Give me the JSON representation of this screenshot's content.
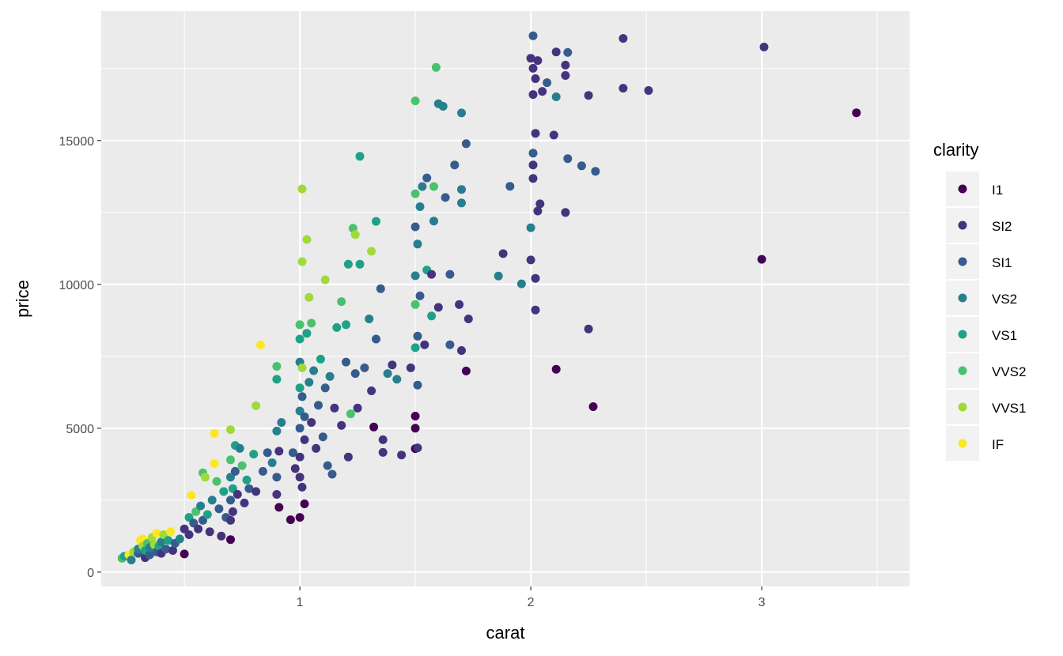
{
  "chart_data": {
    "type": "scatter",
    "title": "",
    "xlabel": "carat",
    "ylabel": "price",
    "xlim": [
      0.14,
      3.64
    ],
    "ylim": [
      -500,
      19500
    ],
    "x_ticks": [
      1,
      2,
      3
    ],
    "x_minor": [
      0.5,
      1.5,
      2.5,
      3.5
    ],
    "y_ticks": [
      0,
      5000,
      10000,
      15000
    ],
    "y_minor": [
      2500,
      7500,
      12500,
      17500
    ],
    "grid": true,
    "panel_background": "#EBEBEB",
    "legend": {
      "title": "clarity",
      "placement": "right",
      "entries": [
        "I1",
        "SI2",
        "SI1",
        "VS2",
        "VS1",
        "VVS2",
        "VVS1",
        "IF"
      ]
    },
    "colors": {
      "I1": "#440154",
      "SI2": "#46337E",
      "SI1": "#365C8D",
      "VS2": "#277F8E",
      "VS1": "#1FA187",
      "VVS2": "#4AC16D",
      "VVS1": "#9FDA3A",
      "IF": "#FDE725"
    },
    "columns": [
      "carat",
      "price",
      "clarity"
    ],
    "points": [
      [
        0.23,
        480,
        "VVS2"
      ],
      [
        0.24,
        550,
        "VS1"
      ],
      [
        0.26,
        600,
        "IF"
      ],
      [
        0.27,
        420,
        "VS2"
      ],
      [
        0.28,
        700,
        "VVS1"
      ],
      [
        0.3,
        650,
        "SI1"
      ],
      [
        0.3,
        800,
        "VS2"
      ],
      [
        0.31,
        1100,
        "IF"
      ],
      [
        0.32,
        1150,
        "IF"
      ],
      [
        0.32,
        900,
        "VVS1"
      ],
      [
        0.33,
        500,
        "SI2"
      ],
      [
        0.33,
        750,
        "VS1"
      ],
      [
        0.34,
        1000,
        "VVS2"
      ],
      [
        0.35,
        600,
        "SI1"
      ],
      [
        0.35,
        850,
        "VS2"
      ],
      [
        0.36,
        1200,
        "VVS1"
      ],
      [
        0.37,
        950,
        "VVS1"
      ],
      [
        0.38,
        700,
        "SI1"
      ],
      [
        0.38,
        1350,
        "IF"
      ],
      [
        0.39,
        900,
        "VS1"
      ],
      [
        0.4,
        1050,
        "VS2"
      ],
      [
        0.4,
        650,
        "SI2"
      ],
      [
        0.41,
        1300,
        "VVS1"
      ],
      [
        0.42,
        800,
        "SI1"
      ],
      [
        0.43,
        1100,
        "VS1"
      ],
      [
        0.44,
        1400,
        "IF"
      ],
      [
        0.45,
        750,
        "SI2"
      ],
      [
        0.46,
        1000,
        "SI1"
      ],
      [
        0.48,
        1150,
        "VS2"
      ],
      [
        0.5,
        630,
        "I1"
      ],
      [
        0.5,
        1500,
        "SI2"
      ],
      [
        0.52,
        1900,
        "VS1"
      ],
      [
        0.52,
        1300,
        "SI2"
      ],
      [
        0.53,
        2670,
        "IF"
      ],
      [
        0.54,
        1700,
        "SI1"
      ],
      [
        0.55,
        2100,
        "VVS2"
      ],
      [
        0.56,
        1500,
        "SI2"
      ],
      [
        0.57,
        2300,
        "VS2"
      ],
      [
        0.58,
        1800,
        "SI1"
      ],
      [
        0.58,
        3450,
        "VVS2"
      ],
      [
        0.59,
        3300,
        "VVS1"
      ],
      [
        0.6,
        2000,
        "VS1"
      ],
      [
        0.61,
        1400,
        "SI2"
      ],
      [
        0.62,
        2500,
        "VS2"
      ],
      [
        0.63,
        3770,
        "IF"
      ],
      [
        0.63,
        4820,
        "IF"
      ],
      [
        0.64,
        3150,
        "VVS2"
      ],
      [
        0.65,
        2200,
        "SI1"
      ],
      [
        0.66,
        1250,
        "SI2"
      ],
      [
        0.67,
        2800,
        "VS1"
      ],
      [
        0.68,
        1900,
        "SI1"
      ],
      [
        0.7,
        1130,
        "I1"
      ],
      [
        0.7,
        4950,
        "VVS1"
      ],
      [
        0.7,
        3900,
        "VVS2"
      ],
      [
        0.7,
        2500,
        "SI1"
      ],
      [
        0.7,
        3300,
        "VS2"
      ],
      [
        0.7,
        1800,
        "SI2"
      ],
      [
        0.71,
        2900,
        "VS1"
      ],
      [
        0.71,
        2100,
        "SI2"
      ],
      [
        0.72,
        4400,
        "VS1"
      ],
      [
        0.72,
        3500,
        "SI1"
      ],
      [
        0.73,
        2700,
        "SI2"
      ],
      [
        0.74,
        4300,
        "VS2"
      ],
      [
        0.75,
        3700,
        "VVS2"
      ],
      [
        0.76,
        2400,
        "SI2"
      ],
      [
        0.77,
        3200,
        "VS1"
      ],
      [
        0.78,
        2900,
        "SI1"
      ],
      [
        0.8,
        4100,
        "VS1"
      ],
      [
        0.81,
        5780,
        "VVS1"
      ],
      [
        0.81,
        2800,
        "SI2"
      ],
      [
        0.83,
        7900,
        "IF"
      ],
      [
        0.84,
        3500,
        "SI1"
      ],
      [
        0.86,
        4150,
        "SI1"
      ],
      [
        0.88,
        3800,
        "VS2"
      ],
      [
        0.9,
        4900,
        "VS2"
      ],
      [
        0.9,
        7150,
        "VVS2"
      ],
      [
        0.9,
        6700,
        "VS1"
      ],
      [
        0.9,
        3300,
        "SI1"
      ],
      [
        0.9,
        2700,
        "SI2"
      ],
      [
        0.91,
        2250,
        "I1"
      ],
      [
        0.91,
        4200,
        "SI2"
      ],
      [
        0.92,
        5200,
        "VS2"
      ],
      [
        0.96,
        1820,
        "I1"
      ],
      [
        0.97,
        4150,
        "SI1"
      ],
      [
        0.98,
        3600,
        "SI2"
      ],
      [
        1.0,
        1900,
        "I1"
      ],
      [
        1.0,
        4000,
        "SI2"
      ],
      [
        1.0,
        5000,
        "SI1"
      ],
      [
        1.0,
        5600,
        "VS2"
      ],
      [
        1.0,
        6400,
        "VS1"
      ],
      [
        1.0,
        7300,
        "VS2"
      ],
      [
        1.0,
        8100,
        "VS1"
      ],
      [
        1.0,
        8600,
        "VVS2"
      ],
      [
        1.0,
        3300,
        "SI2"
      ],
      [
        1.01,
        2950,
        "SI2"
      ],
      [
        1.01,
        6100,
        "SI1"
      ],
      [
        1.01,
        7100,
        "VVS1"
      ],
      [
        1.01,
        10790,
        "VVS1"
      ],
      [
        1.01,
        13320,
        "VVS1"
      ],
      [
        1.02,
        2370,
        "I1"
      ],
      [
        1.02,
        4600,
        "SI2"
      ],
      [
        1.02,
        5400,
        "SI1"
      ],
      [
        1.03,
        11560,
        "VVS1"
      ],
      [
        1.03,
        8300,
        "VS1"
      ],
      [
        1.04,
        9550,
        "VVS1"
      ],
      [
        1.04,
        6600,
        "VS2"
      ],
      [
        1.05,
        8650,
        "VVS2"
      ],
      [
        1.05,
        5200,
        "SI2"
      ],
      [
        1.06,
        7000,
        "VS2"
      ],
      [
        1.07,
        4300,
        "SI2"
      ],
      [
        1.08,
        5800,
        "SI1"
      ],
      [
        1.09,
        7400,
        "VS1"
      ],
      [
        1.1,
        4700,
        "SI1"
      ],
      [
        1.11,
        10160,
        "VVS1"
      ],
      [
        1.11,
        6400,
        "SI1"
      ],
      [
        1.12,
        3700,
        "SI1"
      ],
      [
        1.13,
        6800,
        "VS2"
      ],
      [
        1.14,
        3400,
        "SI1"
      ],
      [
        1.15,
        5700,
        "SI2"
      ],
      [
        1.16,
        8500,
        "VS1"
      ],
      [
        1.18,
        9400,
        "VVS2"
      ],
      [
        1.18,
        5100,
        "SI2"
      ],
      [
        1.2,
        7300,
        "SI1"
      ],
      [
        1.2,
        8600,
        "VS1"
      ],
      [
        1.21,
        10700,
        "VS1"
      ],
      [
        1.21,
        4000,
        "SI2"
      ],
      [
        1.22,
        5500,
        "VVS2"
      ],
      [
        1.23,
        11950,
        "VVS2"
      ],
      [
        1.24,
        11730,
        "VVS1"
      ],
      [
        1.24,
        6900,
        "SI1"
      ],
      [
        1.25,
        5700,
        "SI2"
      ],
      [
        1.26,
        14450,
        "VS1"
      ],
      [
        1.26,
        10700,
        "VS1"
      ],
      [
        1.28,
        7100,
        "SI1"
      ],
      [
        1.3,
        8800,
        "VS2"
      ],
      [
        1.31,
        11150,
        "VVS1"
      ],
      [
        1.31,
        6300,
        "SI2"
      ],
      [
        1.32,
        5040,
        "I1"
      ],
      [
        1.33,
        12190,
        "VS1"
      ],
      [
        1.33,
        8100,
        "SI1"
      ],
      [
        1.35,
        9850,
        "SI1"
      ],
      [
        1.36,
        4600,
        "SI2"
      ],
      [
        1.36,
        4160,
        "SI2"
      ],
      [
        1.38,
        6900,
        "VS2"
      ],
      [
        1.4,
        7200,
        "SI2"
      ],
      [
        1.42,
        6700,
        "VS2"
      ],
      [
        1.44,
        4070,
        "SI2"
      ],
      [
        1.48,
        7100,
        "SI2"
      ],
      [
        1.5,
        4290,
        "I1"
      ],
      [
        1.5,
        5000,
        "I1"
      ],
      [
        1.5,
        5420,
        "I1"
      ],
      [
        1.5,
        7800,
        "VS1"
      ],
      [
        1.5,
        9300,
        "VVS2"
      ],
      [
        1.5,
        10300,
        "VS2"
      ],
      [
        1.5,
        12000,
        "SI1"
      ],
      [
        1.5,
        13150,
        "VVS2"
      ],
      [
        1.5,
        16380,
        "VVS2"
      ],
      [
        1.51,
        4320,
        "SI2"
      ],
      [
        1.51,
        6500,
        "SI1"
      ],
      [
        1.51,
        8200,
        "SI1"
      ],
      [
        1.51,
        11400,
        "VS2"
      ],
      [
        1.52,
        9600,
        "SI1"
      ],
      [
        1.52,
        12700,
        "VS2"
      ],
      [
        1.53,
        13400,
        "VS2"
      ],
      [
        1.54,
        7900,
        "SI2"
      ],
      [
        1.55,
        13700,
        "SI1"
      ],
      [
        1.55,
        10500,
        "VS1"
      ],
      [
        1.57,
        8900,
        "VS1"
      ],
      [
        1.57,
        10350,
        "SI2"
      ],
      [
        1.58,
        13400,
        "VVS2"
      ],
      [
        1.58,
        12200,
        "VS2"
      ],
      [
        1.59,
        17540,
        "VVS2"
      ],
      [
        1.6,
        16280,
        "VS2"
      ],
      [
        1.6,
        9200,
        "SI2"
      ],
      [
        1.62,
        16190,
        "VS2"
      ],
      [
        1.63,
        13020,
        "SI1"
      ],
      [
        1.65,
        10350,
        "SI1"
      ],
      [
        1.65,
        7900,
        "SI1"
      ],
      [
        1.67,
        14150,
        "SI1"
      ],
      [
        1.69,
        9300,
        "SI2"
      ],
      [
        1.7,
        7700,
        "SI2"
      ],
      [
        1.7,
        12830,
        "VS2"
      ],
      [
        1.7,
        13300,
        "VS2"
      ],
      [
        1.7,
        15960,
        "VS2"
      ],
      [
        1.72,
        14890,
        "SI1"
      ],
      [
        1.72,
        6990,
        "I1"
      ],
      [
        1.73,
        8800,
        "SI2"
      ],
      [
        1.86,
        10290,
        "VS2"
      ],
      [
        1.88,
        11070,
        "SI2"
      ],
      [
        1.91,
        13410,
        "SI1"
      ],
      [
        1.96,
        10020,
        "VS2"
      ],
      [
        2.0,
        17860,
        "SI2"
      ],
      [
        2.0,
        11970,
        "VS2"
      ],
      [
        2.0,
        10850,
        "SI2"
      ],
      [
        2.01,
        18640,
        "SI1"
      ],
      [
        2.01,
        17510,
        "SI2"
      ],
      [
        2.01,
        16600,
        "SI2"
      ],
      [
        2.01,
        14560,
        "SI1"
      ],
      [
        2.01,
        14150,
        "SI2"
      ],
      [
        2.01,
        13680,
        "SI2"
      ],
      [
        2.02,
        17150,
        "SI2"
      ],
      [
        2.02,
        15250,
        "SI2"
      ],
      [
        2.02,
        10210,
        "SI2"
      ],
      [
        2.02,
        9110,
        "SI2"
      ],
      [
        2.03,
        17780,
        "SI2"
      ],
      [
        2.03,
        12550,
        "SI2"
      ],
      [
        2.04,
        12800,
        "SI2"
      ],
      [
        2.05,
        16710,
        "SI2"
      ],
      [
        2.07,
        17010,
        "SI1"
      ],
      [
        2.1,
        15190,
        "SI2"
      ],
      [
        2.11,
        18080,
        "SI2"
      ],
      [
        2.11,
        16520,
        "VS2"
      ],
      [
        2.11,
        7050,
        "I1"
      ],
      [
        2.15,
        17620,
        "SI2"
      ],
      [
        2.15,
        17260,
        "SI2"
      ],
      [
        2.15,
        12500,
        "SI2"
      ],
      [
        2.16,
        18060,
        "SI1"
      ],
      [
        2.16,
        14370,
        "SI1"
      ],
      [
        2.22,
        14120,
        "SI1"
      ],
      [
        2.25,
        16570,
        "SI2"
      ],
      [
        2.25,
        8450,
        "SI2"
      ],
      [
        2.27,
        5750,
        "I1"
      ],
      [
        2.28,
        13930,
        "SI1"
      ],
      [
        2.4,
        18550,
        "SI2"
      ],
      [
        2.4,
        16820,
        "SI2"
      ],
      [
        2.51,
        16740,
        "SI2"
      ],
      [
        3.0,
        10870,
        "I1"
      ],
      [
        3.01,
        18250,
        "SI2"
      ],
      [
        3.41,
        15965,
        "I1"
      ]
    ]
  }
}
